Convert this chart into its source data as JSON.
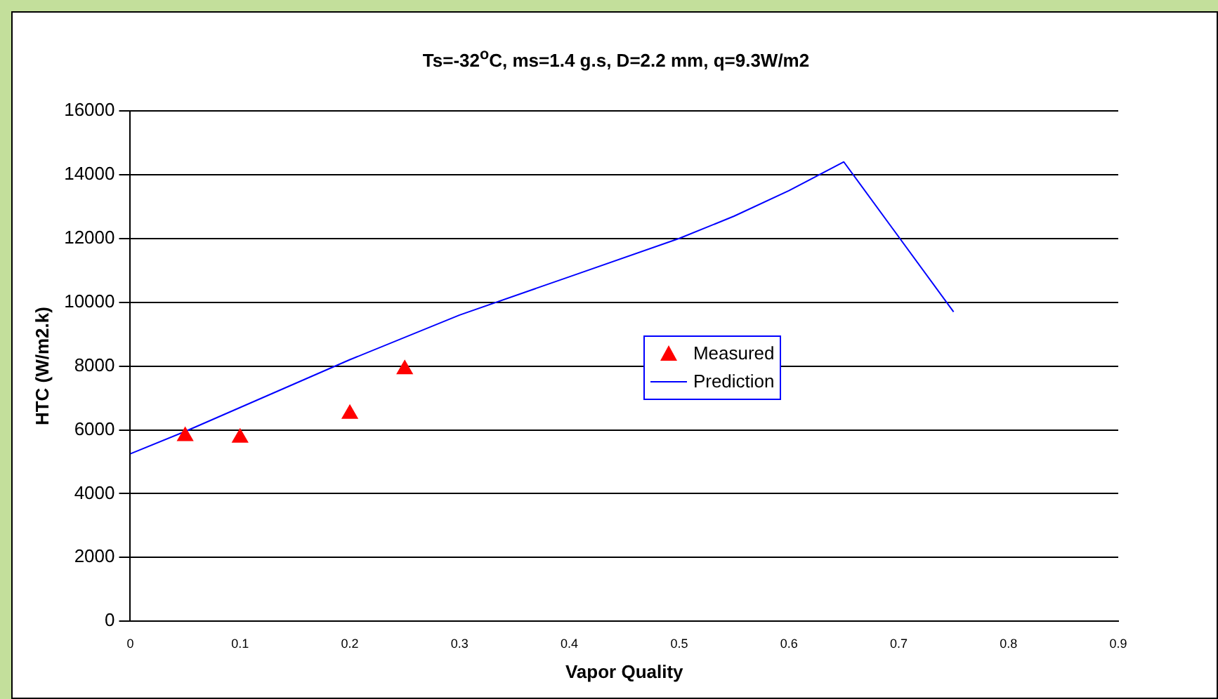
{
  "chart_data": {
    "type": "line",
    "title": "Ts=-32$^{o}$C, ms=1.4 g.s, D=2.2 mm, q=9.3W/m2",
    "xlabel": "Vapor Quality",
    "ylabel": "HTC (W/m2.k)",
    "xlim": [
      0,
      0.9
    ],
    "xticks": [
      0,
      0.1,
      0.2,
      0.3,
      0.4,
      0.5,
      0.6,
      0.7,
      0.8,
      0.9
    ],
    "ylim": [
      0,
      16000
    ],
    "yticks": [
      0,
      2000,
      4000,
      6000,
      8000,
      10000,
      12000,
      14000,
      16000
    ],
    "grid": "y",
    "legend": "right",
    "series": [
      {
        "name": "Measured",
        "type": "scatter",
        "marker": "triangle",
        "color": "#ff0000",
        "x": [
          0.05,
          0.1,
          0.2,
          0.25
        ],
        "values": [
          5800,
          5750,
          6500,
          7900
        ]
      },
      {
        "name": "Prediction",
        "type": "line",
        "marker": "none",
        "color": "#0000ff",
        "x": [
          0,
          0.05,
          0.2,
          0.3,
          0.4,
          0.5,
          0.55,
          0.6,
          0.65,
          0.75
        ],
        "values": [
          5250,
          5950,
          8200,
          9600,
          10800,
          12000,
          12700,
          13500,
          14400,
          9700
        ]
      }
    ]
  }
}
